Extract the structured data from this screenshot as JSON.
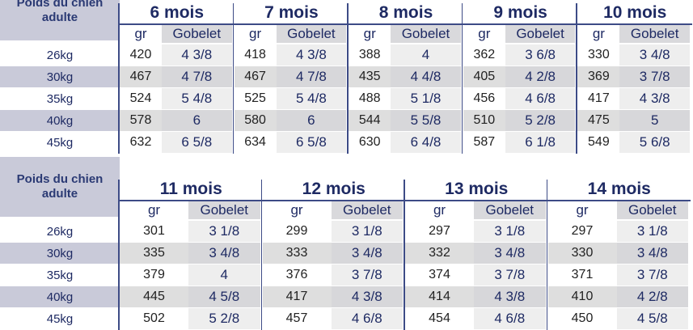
{
  "label_header": "Poids du chien adulte",
  "sub_gr": "gr",
  "sub_gobelet": "Gobelet",
  "weights": [
    "26kg",
    "30kg",
    "35kg",
    "40kg",
    "45kg"
  ],
  "table1": {
    "months": [
      {
        "name": "6 mois",
        "gr": [
          "420",
          "467",
          "524",
          "578",
          "632"
        ],
        "gob": [
          "4 3/8",
          "4 7/8",
          "5 4/8",
          "6",
          "6 5/8"
        ]
      },
      {
        "name": "7 mois",
        "gr": [
          "418",
          "467",
          "525",
          "580",
          "634"
        ],
        "gob": [
          "4 3/8",
          "4 7/8",
          "5 4/8",
          "6",
          "6 5/8"
        ]
      },
      {
        "name": "8 mois",
        "gr": [
          "388",
          "435",
          "488",
          "544",
          "630"
        ],
        "gob": [
          "4",
          "4 4/8",
          "5 1/8",
          "5 5/8",
          "6 4/8"
        ]
      },
      {
        "name": "9 mois",
        "gr": [
          "362",
          "405",
          "456",
          "510",
          "587"
        ],
        "gob": [
          "3 6/8",
          "4 2/8",
          "4 6/8",
          "5 2/8",
          "6 1/8"
        ]
      },
      {
        "name": "10 mois",
        "gr": [
          "330",
          "369",
          "417",
          "475",
          "549"
        ],
        "gob": [
          "3 4/8",
          "3 7/8",
          "4 3/8",
          "5",
          "5 6/8"
        ]
      }
    ]
  },
  "table2": {
    "months": [
      {
        "name": "11 mois",
        "gr": [
          "301",
          "335",
          "379",
          "445",
          "502"
        ],
        "gob": [
          "3 1/8",
          "3 4/8",
          "4",
          "4 5/8",
          "5 2/8"
        ]
      },
      {
        "name": "12 mois",
        "gr": [
          "299",
          "333",
          "376",
          "417",
          "457"
        ],
        "gob": [
          "3 1/8",
          "3 4/8",
          "3 7/8",
          "4 3/8",
          "4 6/8"
        ]
      },
      {
        "name": "13 mois",
        "gr": [
          "297",
          "332",
          "374",
          "414",
          "454"
        ],
        "gob": [
          "3 1/8",
          "3 4/8",
          "3 7/8",
          "4 3/8",
          "4 6/8"
        ]
      },
      {
        "name": "14 mois",
        "gr": [
          "297",
          "330",
          "371",
          "410",
          "450"
        ],
        "gob": [
          "3 1/8",
          "3 4/8",
          "3 7/8",
          "4 2/8",
          "4 5/8"
        ]
      }
    ]
  }
}
